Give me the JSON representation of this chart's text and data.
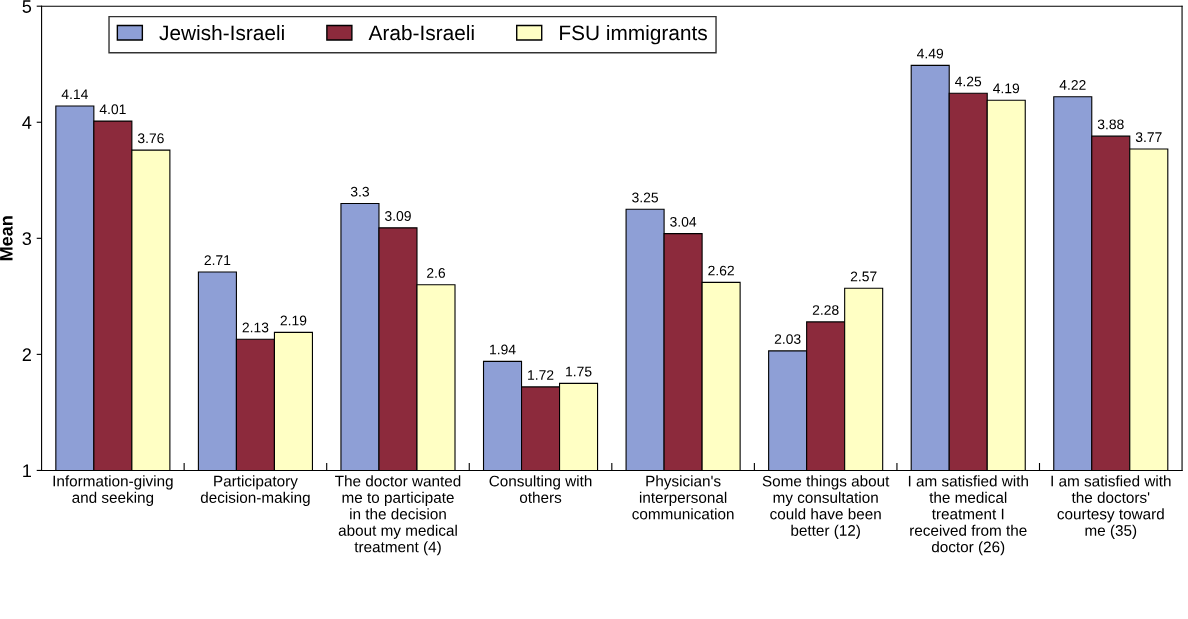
{
  "chart_data": {
    "type": "bar",
    "ylabel": "Mean",
    "categories": [
      "Information-giving\nand seeking",
      "Participatory\ndecision-making",
      "The doctor wanted\nme to participate\nin the decision\nabout my medical\ntreatment (4)",
      "Consulting with\nothers",
      "Physician's\ninterpersonal\ncommunication",
      "Some things about\nmy consultation\ncould have been\nbetter (12)",
      "I am satisfied with\nthe medical\ntreatment I\nreceived from the\ndoctor (26)",
      "I am satisfied with\nthe doctors'\ncourtesy toward\nme (35)"
    ],
    "series": [
      {
        "name": "Jewish-Israeli",
        "color": "#8e9fd6",
        "values": [
          4.14,
          2.71,
          3.3,
          1.94,
          3.25,
          2.03,
          4.49,
          4.22
        ]
      },
      {
        "name": "Arab-Israeli",
        "color": "#8c2a3c",
        "values": [
          4.01,
          2.13,
          3.09,
          1.72,
          3.04,
          2.28,
          4.25,
          3.88
        ]
      },
      {
        "name": "FSU immigrants",
        "color": "#ffffc4",
        "values": [
          3.76,
          2.19,
          2.6,
          1.75,
          2.62,
          2.57,
          4.19,
          3.77
        ]
      }
    ],
    "ylim": [
      1,
      5
    ],
    "yticks": [
      1,
      2,
      3,
      4,
      5
    ],
    "data_labels": true,
    "legend": "top left",
    "grid": false
  }
}
